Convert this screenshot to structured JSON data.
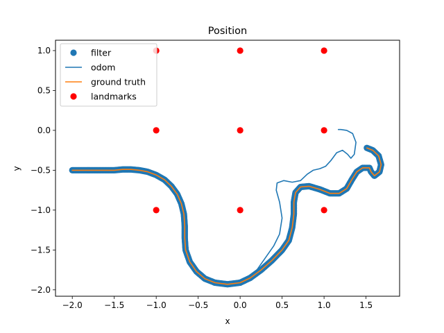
{
  "chart_data": {
    "type": "scatter",
    "title": "Position",
    "xlabel": "x",
    "ylabel": "y",
    "xlim": [
      -2.2,
      1.9
    ],
    "ylim": [
      -2.08,
      1.13
    ],
    "xticks": [
      -2.0,
      -1.5,
      -1.0,
      -0.5,
      0.0,
      0.5,
      1.0,
      1.5
    ],
    "xtick_labels": [
      "−2.0",
      "−1.5",
      "−1.0",
      "−0.5",
      "0.0",
      "0.5",
      "1.0",
      "1.5"
    ],
    "yticks": [
      1.0,
      0.5,
      0.0,
      -0.5,
      -1.0,
      -1.5,
      -2.0
    ],
    "ytick_labels": [
      "1.0",
      "0.5",
      "0.0",
      "−0.5",
      "−1.0",
      "−1.5",
      "−2.0"
    ],
    "grid": false,
    "legend_position": "top-left",
    "series": [
      {
        "name": "filter",
        "kind": "scatter",
        "color": "#1f77b4",
        "points": [
          [
            -2.0,
            -0.5
          ],
          [
            -1.9,
            -0.5
          ],
          [
            -1.8,
            -0.5
          ],
          [
            -1.7,
            -0.5
          ],
          [
            -1.6,
            -0.5
          ],
          [
            -1.5,
            -0.5
          ],
          [
            -1.4,
            -0.49
          ],
          [
            -1.3,
            -0.49
          ],
          [
            -1.2,
            -0.5
          ],
          [
            -1.1,
            -0.52
          ],
          [
            -1.0,
            -0.56
          ],
          [
            -0.9,
            -0.62
          ],
          [
            -0.82,
            -0.7
          ],
          [
            -0.75,
            -0.8
          ],
          [
            -0.7,
            -0.92
          ],
          [
            -0.67,
            -1.05
          ],
          [
            -0.66,
            -1.2
          ],
          [
            -0.66,
            -1.35
          ],
          [
            -0.65,
            -1.5
          ],
          [
            -0.6,
            -1.65
          ],
          [
            -0.52,
            -1.77
          ],
          [
            -0.42,
            -1.86
          ],
          [
            -0.3,
            -1.91
          ],
          [
            -0.15,
            -1.93
          ],
          [
            0.0,
            -1.91
          ],
          [
            0.12,
            -1.85
          ],
          [
            0.25,
            -1.75
          ],
          [
            0.38,
            -1.63
          ],
          [
            0.5,
            -1.5
          ],
          [
            0.58,
            -1.38
          ],
          [
            0.62,
            -1.22
          ],
          [
            0.64,
            -1.05
          ],
          [
            0.64,
            -0.9
          ],
          [
            0.66,
            -0.78
          ],
          [
            0.72,
            -0.71
          ],
          [
            0.82,
            -0.7
          ],
          [
            0.95,
            -0.74
          ],
          [
            1.07,
            -0.79
          ],
          [
            1.18,
            -0.79
          ],
          [
            1.27,
            -0.73
          ],
          [
            1.33,
            -0.62
          ],
          [
            1.39,
            -0.52
          ],
          [
            1.46,
            -0.47
          ],
          [
            1.54,
            -0.47
          ],
          [
            1.56,
            -0.52
          ],
          [
            1.6,
            -0.57
          ],
          [
            1.66,
            -0.52
          ],
          [
            1.68,
            -0.43
          ],
          [
            1.65,
            -0.32
          ],
          [
            1.58,
            -0.25
          ],
          [
            1.51,
            -0.22
          ]
        ]
      },
      {
        "name": "odom",
        "kind": "line",
        "color": "#1f77b4",
        "points": [
          [
            -2.0,
            -0.5
          ],
          [
            -1.5,
            -0.5
          ],
          [
            -1.3,
            -0.49
          ],
          [
            -1.2,
            -0.5
          ],
          [
            -1.1,
            -0.52
          ],
          [
            -1.0,
            -0.56
          ],
          [
            -0.9,
            -0.62
          ],
          [
            -0.82,
            -0.7
          ],
          [
            -0.75,
            -0.8
          ],
          [
            -0.7,
            -0.92
          ],
          [
            -0.67,
            -1.05
          ],
          [
            -0.66,
            -1.2
          ],
          [
            -0.66,
            -1.35
          ],
          [
            -0.65,
            -1.5
          ],
          [
            -0.6,
            -1.65
          ],
          [
            -0.52,
            -1.77
          ],
          [
            -0.42,
            -1.86
          ],
          [
            -0.3,
            -1.91
          ],
          [
            -0.15,
            -1.93
          ],
          [
            0.0,
            -1.91
          ],
          [
            0.12,
            -1.85
          ],
          [
            0.2,
            -1.75
          ],
          [
            0.3,
            -1.6
          ],
          [
            0.4,
            -1.45
          ],
          [
            0.47,
            -1.3
          ],
          [
            0.5,
            -1.1
          ],
          [
            0.47,
            -0.9
          ],
          [
            0.43,
            -0.75
          ],
          [
            0.44,
            -0.66
          ],
          [
            0.52,
            -0.63
          ],
          [
            0.62,
            -0.65
          ],
          [
            0.72,
            -0.63
          ],
          [
            0.8,
            -0.55
          ],
          [
            0.87,
            -0.5
          ],
          [
            0.95,
            -0.48
          ],
          [
            1.02,
            -0.45
          ],
          [
            1.08,
            -0.38
          ],
          [
            1.15,
            -0.28
          ],
          [
            1.22,
            -0.25
          ],
          [
            1.28,
            -0.3
          ],
          [
            1.32,
            -0.35
          ],
          [
            1.36,
            -0.3
          ],
          [
            1.38,
            -0.15
          ],
          [
            1.34,
            -0.04
          ],
          [
            1.27,
            0.0
          ],
          [
            1.2,
            0.01
          ],
          [
            1.17,
            0.01
          ]
        ]
      },
      {
        "name": "ground truth",
        "kind": "line",
        "color": "#ff7f0e",
        "points": [
          [
            -2.0,
            -0.5
          ],
          [
            -1.5,
            -0.5
          ],
          [
            -1.4,
            -0.49
          ],
          [
            -1.3,
            -0.49
          ],
          [
            -1.2,
            -0.5
          ],
          [
            -1.1,
            -0.52
          ],
          [
            -1.0,
            -0.56
          ],
          [
            -0.9,
            -0.62
          ],
          [
            -0.82,
            -0.7
          ],
          [
            -0.75,
            -0.8
          ],
          [
            -0.7,
            -0.92
          ],
          [
            -0.67,
            -1.05
          ],
          [
            -0.66,
            -1.2
          ],
          [
            -0.66,
            -1.35
          ],
          [
            -0.65,
            -1.5
          ],
          [
            -0.6,
            -1.65
          ],
          [
            -0.52,
            -1.77
          ],
          [
            -0.42,
            -1.86
          ],
          [
            -0.3,
            -1.91
          ],
          [
            -0.15,
            -1.93
          ],
          [
            0.0,
            -1.91
          ],
          [
            0.12,
            -1.85
          ],
          [
            0.25,
            -1.75
          ],
          [
            0.38,
            -1.63
          ],
          [
            0.5,
            -1.5
          ],
          [
            0.58,
            -1.38
          ],
          [
            0.62,
            -1.22
          ],
          [
            0.64,
            -1.05
          ],
          [
            0.64,
            -0.9
          ],
          [
            0.66,
            -0.78
          ],
          [
            0.72,
            -0.71
          ],
          [
            0.82,
            -0.7
          ],
          [
            0.95,
            -0.74
          ],
          [
            1.07,
            -0.79
          ],
          [
            1.18,
            -0.79
          ],
          [
            1.27,
            -0.73
          ],
          [
            1.33,
            -0.62
          ],
          [
            1.39,
            -0.52
          ],
          [
            1.46,
            -0.47
          ],
          [
            1.54,
            -0.47
          ],
          [
            1.56,
            -0.52
          ],
          [
            1.6,
            -0.57
          ],
          [
            1.66,
            -0.52
          ],
          [
            1.68,
            -0.43
          ],
          [
            1.65,
            -0.32
          ],
          [
            1.58,
            -0.25
          ],
          [
            1.51,
            -0.22
          ]
        ]
      },
      {
        "name": "landmarks",
        "kind": "scatter",
        "color": "#ff0000",
        "points": [
          [
            -1.0,
            1.0
          ],
          [
            0.0,
            1.0
          ],
          [
            1.0,
            1.0
          ],
          [
            -1.0,
            0.0
          ],
          [
            0.0,
            0.0
          ],
          [
            1.0,
            0.0
          ],
          [
            -1.0,
            -1.0
          ],
          [
            0.0,
            -1.0
          ],
          [
            1.0,
            -1.0
          ]
        ]
      }
    ]
  }
}
